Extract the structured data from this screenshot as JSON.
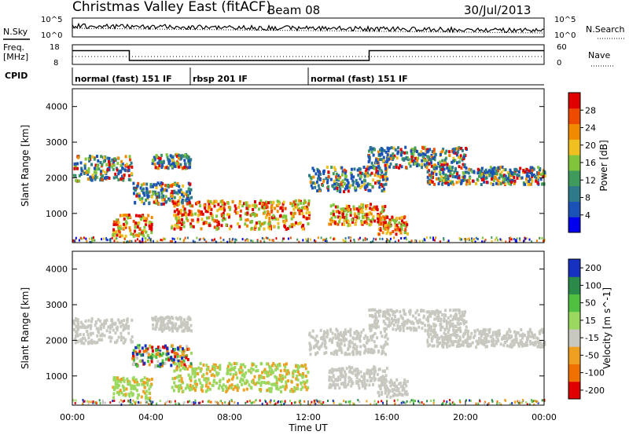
{
  "header": {
    "title": "Christmas Valley East (fitACF)",
    "beam": "Beam 08",
    "date": "30/Jul/2013"
  },
  "labels": {
    "nsky": "N.Sky",
    "freq": "Freq.",
    "freq_unit": "[MHz]",
    "cpid": "CPID",
    "nsearch": "N.Search",
    "nave": "Nave",
    "xlabel": "Time UT"
  },
  "noise_ticks_left": [
    "10^5",
    "10^0"
  ],
  "noise_ticks_right": [
    "10^5",
    "10^0"
  ],
  "freq_ticks": [
    "18",
    "8"
  ],
  "nave_ticks": [
    "60",
    "0"
  ],
  "cpid_segments": [
    {
      "label": "normal (fast) 151 IF",
      "start_h": 0,
      "end_h": 6
    },
    {
      "label": "rbsp 201 IF",
      "start_h": 6,
      "end_h": 12
    },
    {
      "label": "normal (fast) 151 IF",
      "start_h": 12,
      "end_h": 24
    }
  ],
  "time_ticks": [
    "00:00",
    "04:00",
    "08:00",
    "12:00",
    "16:00",
    "20:00",
    "00:00"
  ],
  "colors": {
    "power_scale": [
      "#0000ee",
      "#1a52b8",
      "#2e7a8a",
      "#3f9b5c",
      "#7fc43a",
      "#f0c020",
      "#f08a00",
      "#ee4a00",
      "#e00000"
    ],
    "velocity_scale": [
      "#1630c0",
      "#2a8a4a",
      "#50c040",
      "#9ad860",
      "#c8c8c0",
      "#f0a020",
      "#f07000",
      "#e00000"
    ]
  },
  "chart_data": [
    {
      "type": "line",
      "name_left": "N.Sky",
      "name_right": "N.Search",
      "x_range_hours": [
        0,
        24
      ],
      "y_log": true,
      "ylim": [
        1,
        100000
      ],
      "grid": false
    },
    {
      "type": "line",
      "name_left": "Freq. [MHz]",
      "name_right": "Nave",
      "x_range_hours": [
        0,
        24
      ],
      "freq_mhz": [
        {
          "start_h": 0,
          "end_h": 2.9,
          "value": 15
        },
        {
          "start_h": 2.9,
          "end_h": 15.1,
          "value": 10
        },
        {
          "start_h": 15.1,
          "end_h": 24,
          "value": 15
        }
      ],
      "ylim_freq": [
        8,
        18
      ],
      "ylim_nave": [
        0,
        60
      ]
    },
    {
      "type": "heatmap",
      "panel": "Power",
      "colorbar_label": "Power [dB]",
      "colorbar_ticks": [
        4,
        8,
        12,
        16,
        20,
        24,
        28
      ],
      "ylabel": "Slant Range [km]",
      "yticks": [
        1000,
        2000,
        3000,
        4000
      ],
      "ylim_km": [
        180,
        4500
      ],
      "xlim_hours": [
        0,
        24
      ]
    },
    {
      "type": "heatmap",
      "panel": "Velocity",
      "colorbar_label": "Velocity [m s^-1]",
      "colorbar_ticks": [
        200,
        100,
        50,
        15,
        -15,
        -50,
        -100,
        -200
      ],
      "ylabel": "Slant Range [km]",
      "yticks": [
        1000,
        2000,
        3000,
        4000
      ],
      "ylim_km": [
        180,
        4500
      ],
      "xlim_hours": [
        0,
        24
      ],
      "xlabel": "Time UT",
      "xticks": [
        "00:00",
        "04:00",
        "08:00",
        "12:00",
        "16:00",
        "20:00",
        "00:00"
      ]
    }
  ]
}
